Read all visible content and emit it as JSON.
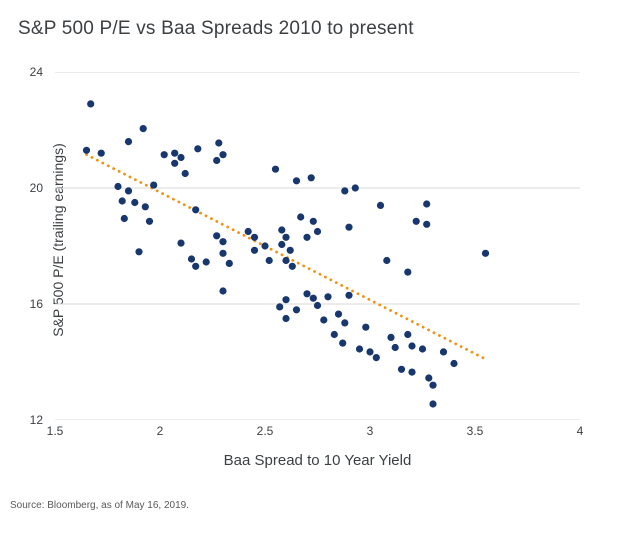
{
  "title": "S&P 500 P/E vs Baa Spreads 2010 to present",
  "source": "Source: Bloomberg, as of May 16, 2019.",
  "chart_data": {
    "type": "scatter",
    "title": "S&P 500 P/E vs Baa Spreads 2010 to present",
    "xlabel": "Baa Spread to 10 Year Yield",
    "ylabel": "S&P 500 P/E (trailing earnings)",
    "xlim": [
      1.5,
      4
    ],
    "ylim": [
      12,
      24
    ],
    "xticks": [
      1.5,
      2,
      2.5,
      3,
      3.5,
      4
    ],
    "yticks": [
      12,
      16,
      20,
      24
    ],
    "grid": "horizontal",
    "grid_color": "#d9d9d9",
    "point_color": "#17376e",
    "trend_color": "#ef9310",
    "legend": "none",
    "trendline": {
      "x1": 1.65,
      "y1": 21.15,
      "x2": 3.55,
      "y2": 14.1
    },
    "points": [
      [
        1.67,
        22.9
      ],
      [
        1.65,
        21.3
      ],
      [
        1.72,
        21.2
      ],
      [
        1.85,
        21.6
      ],
      [
        1.92,
        22.05
      ],
      [
        1.8,
        20.05
      ],
      [
        1.85,
        19.9
      ],
      [
        1.82,
        19.55
      ],
      [
        1.88,
        19.5
      ],
      [
        1.93,
        19.35
      ],
      [
        1.83,
        18.95
      ],
      [
        1.95,
        18.85
      ],
      [
        1.9,
        17.8
      ],
      [
        1.97,
        20.1
      ],
      [
        2.02,
        21.15
      ],
      [
        2.07,
        21.2
      ],
      [
        2.1,
        21.05
      ],
      [
        2.07,
        20.85
      ],
      [
        2.12,
        20.5
      ],
      [
        2.18,
        21.35
      ],
      [
        2.28,
        21.55
      ],
      [
        2.3,
        21.15
      ],
      [
        2.27,
        20.95
      ],
      [
        2.17,
        19.25
      ],
      [
        2.1,
        18.1
      ],
      [
        2.15,
        17.55
      ],
      [
        2.17,
        17.3
      ],
      [
        2.22,
        17.45
      ],
      [
        2.27,
        18.35
      ],
      [
        2.3,
        18.15
      ],
      [
        2.3,
        17.75
      ],
      [
        2.33,
        17.4
      ],
      [
        2.3,
        16.45
      ],
      [
        2.42,
        18.5
      ],
      [
        2.45,
        18.3
      ],
      [
        2.5,
        18.0
      ],
      [
        2.45,
        17.85
      ],
      [
        2.52,
        17.5
      ],
      [
        2.55,
        20.65
      ],
      [
        2.58,
        18.55
      ],
      [
        2.6,
        18.3
      ],
      [
        2.58,
        18.05
      ],
      [
        2.62,
        17.85
      ],
      [
        2.6,
        17.5
      ],
      [
        2.63,
        17.3
      ],
      [
        2.65,
        20.25
      ],
      [
        2.72,
        20.35
      ],
      [
        2.67,
        19.0
      ],
      [
        2.73,
        18.85
      ],
      [
        2.7,
        18.3
      ],
      [
        2.75,
        18.5
      ],
      [
        2.6,
        16.15
      ],
      [
        2.57,
        15.9
      ],
      [
        2.6,
        15.5
      ],
      [
        2.65,
        15.8
      ],
      [
        2.7,
        16.35
      ],
      [
        2.73,
        16.2
      ],
      [
        2.75,
        15.95
      ],
      [
        2.78,
        15.45
      ],
      [
        2.8,
        16.25
      ],
      [
        2.83,
        14.95
      ],
      [
        2.85,
        15.65
      ],
      [
        2.87,
        14.65
      ],
      [
        2.88,
        15.35
      ],
      [
        2.9,
        18.65
      ],
      [
        2.88,
        19.9
      ],
      [
        2.93,
        20.0
      ],
      [
        2.9,
        16.3
      ],
      [
        2.95,
        14.45
      ],
      [
        3.0,
        14.35
      ],
      [
        2.98,
        15.2
      ],
      [
        3.03,
        14.15
      ],
      [
        3.05,
        19.4
      ],
      [
        3.08,
        17.5
      ],
      [
        3.1,
        14.85
      ],
      [
        3.12,
        14.5
      ],
      [
        3.15,
        13.75
      ],
      [
        3.18,
        14.95
      ],
      [
        3.2,
        14.55
      ],
      [
        3.2,
        13.65
      ],
      [
        3.22,
        18.85
      ],
      [
        3.27,
        19.45
      ],
      [
        3.27,
        18.75
      ],
      [
        3.18,
        17.1
      ],
      [
        3.25,
        14.45
      ],
      [
        3.28,
        13.45
      ],
      [
        3.3,
        13.2
      ],
      [
        3.3,
        12.55
      ],
      [
        3.35,
        14.35
      ],
      [
        3.4,
        13.95
      ],
      [
        3.55,
        17.75
      ]
    ]
  }
}
